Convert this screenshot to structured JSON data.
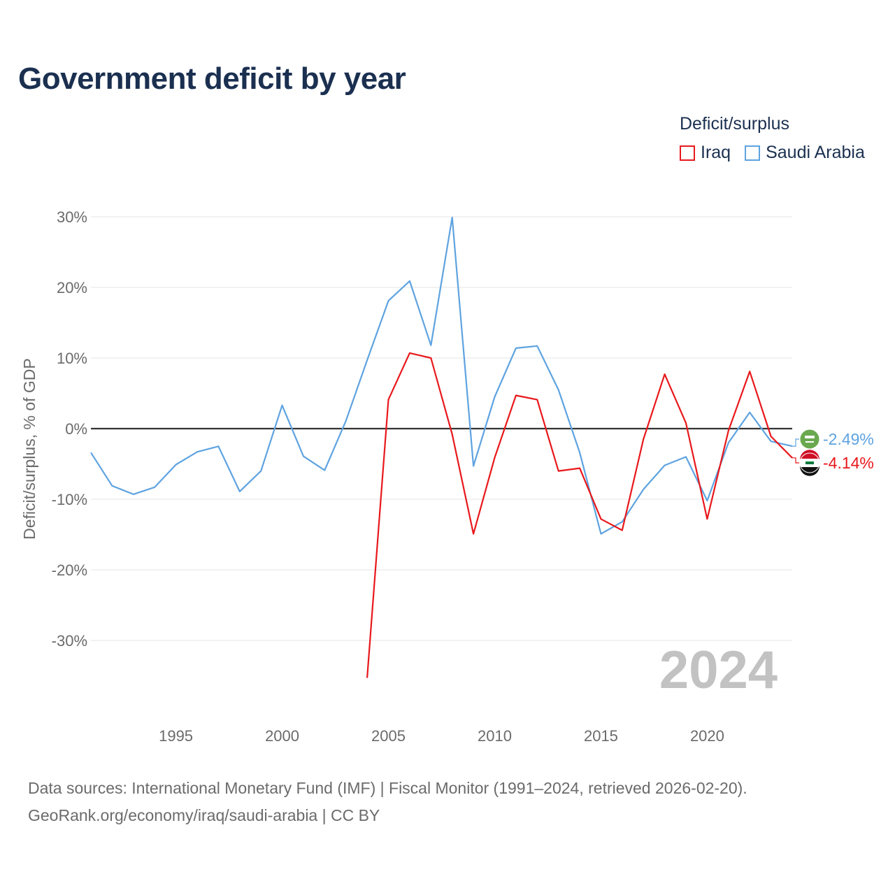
{
  "chart_data": {
    "type": "line",
    "title": "Government deficit by year",
    "ylabel": "Deficit/surplus, % of GDP",
    "xlabel": "",
    "xlim": [
      1991,
      2024
    ],
    "ylim": [
      -39,
      30
    ],
    "y_ticks": [
      30,
      20,
      10,
      0,
      -10,
      -20,
      -30
    ],
    "y_tick_labels": [
      "30%",
      "20%",
      "10%",
      "0%",
      "-10%",
      "-20%",
      "-30%"
    ],
    "x_ticks": [
      1995,
      2000,
      2005,
      2010,
      2015,
      2020
    ],
    "x_tick_labels": [
      "1995",
      "2000",
      "2005",
      "2010",
      "2015",
      "2020"
    ],
    "legend": {
      "title": "Deficit/surplus",
      "placement": "top-right"
    },
    "year_watermark": "2024",
    "series": [
      {
        "name": "Iraq",
        "color": "#e8181c",
        "end_label": "-4.14%",
        "flag": "iraq-flag-icon",
        "x": [
          2004,
          2005,
          2006,
          2007,
          2008,
          2009,
          2010,
          2011,
          2012,
          2013,
          2014,
          2015,
          2016,
          2017,
          2018,
          2019,
          2020,
          2021,
          2022,
          2023,
          2024
        ],
        "values": [
          -35.3,
          4.1,
          10.7,
          10.0,
          -0.8,
          -14.9,
          -4.1,
          4.7,
          4.1,
          -6.0,
          -5.6,
          -12.8,
          -14.4,
          -1.5,
          7.7,
          0.8,
          -12.8,
          -0.3,
          8.1,
          -1.1,
          -4.14
        ]
      },
      {
        "name": "Saudi Arabia",
        "color": "#5fa3e0",
        "end_label": "-2.49%",
        "flag": "saudi-arabia-flag-icon",
        "x": [
          1991,
          1992,
          1993,
          1994,
          1995,
          1996,
          1997,
          1998,
          1999,
          2000,
          2001,
          2002,
          2003,
          2004,
          2005,
          2006,
          2007,
          2008,
          2009,
          2010,
          2011,
          2012,
          2013,
          2014,
          2015,
          2016,
          2017,
          2018,
          2019,
          2020,
          2021,
          2022,
          2023,
          2024
        ],
        "values": [
          -3.4,
          -8.1,
          -9.3,
          -8.3,
          -5.1,
          -3.3,
          -2.5,
          -8.9,
          -6.0,
          3.3,
          -3.9,
          -5.9,
          1.1,
          9.7,
          18.1,
          20.9,
          11.8,
          29.9,
          -5.3,
          4.5,
          11.4,
          11.7,
          5.5,
          -3.4,
          -14.9,
          -13.2,
          -8.6,
          -5.2,
          -4.0,
          -10.2,
          -2.0,
          2.3,
          -1.8,
          -2.49
        ]
      }
    ]
  },
  "source_line1": "Data sources: International Monetary Fund (IMF) | Fiscal Monitor (1991–2024, retrieved 2026-02-20).",
  "source_line2": "GeoRank.org/economy/iraq/saudi-arabia | CC BY"
}
